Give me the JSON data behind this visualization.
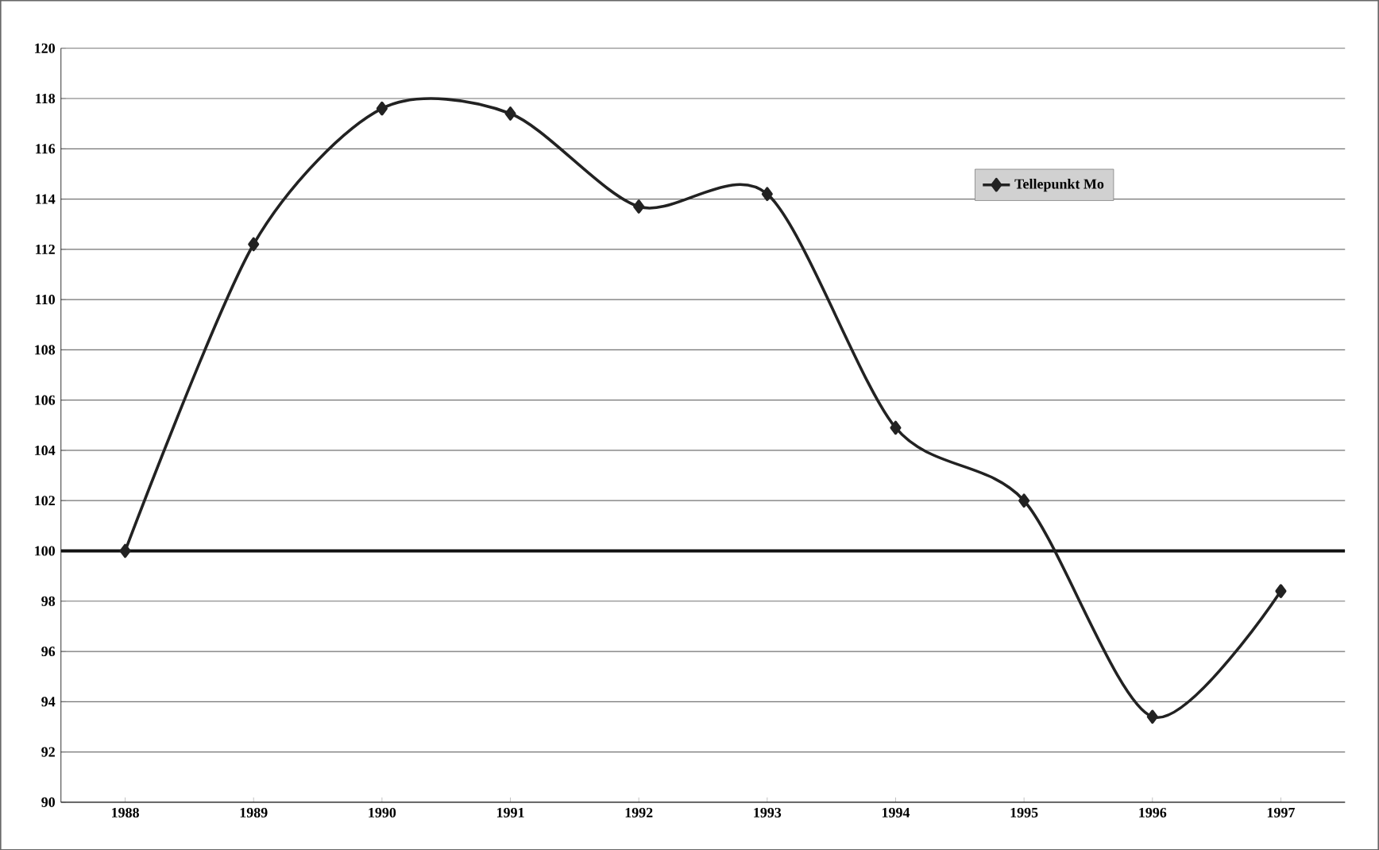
{
  "chart_data": {
    "type": "line",
    "categories": [
      "1988",
      "1989",
      "1990",
      "1991",
      "1992",
      "1993",
      "1994",
      "1995",
      "1996",
      "1997"
    ],
    "series": [
      {
        "name": "Tellepunkt Mo",
        "color": "#222222",
        "values": [
          100,
          112.2,
          117.6,
          117.4,
          113.7,
          114.2,
          104.9,
          102,
          93.4,
          98.4
        ]
      }
    ],
    "ylim": [
      90,
      120
    ],
    "yticks": [
      90,
      92,
      94,
      96,
      98,
      100,
      102,
      104,
      106,
      108,
      110,
      112,
      114,
      116,
      118,
      120
    ],
    "ref_lines": [
      {
        "axis": "y",
        "value": 100,
        "color": "#111111"
      }
    ],
    "grid": "y",
    "legend": "top right",
    "marker": "diamond",
    "line_style": "solid"
  }
}
